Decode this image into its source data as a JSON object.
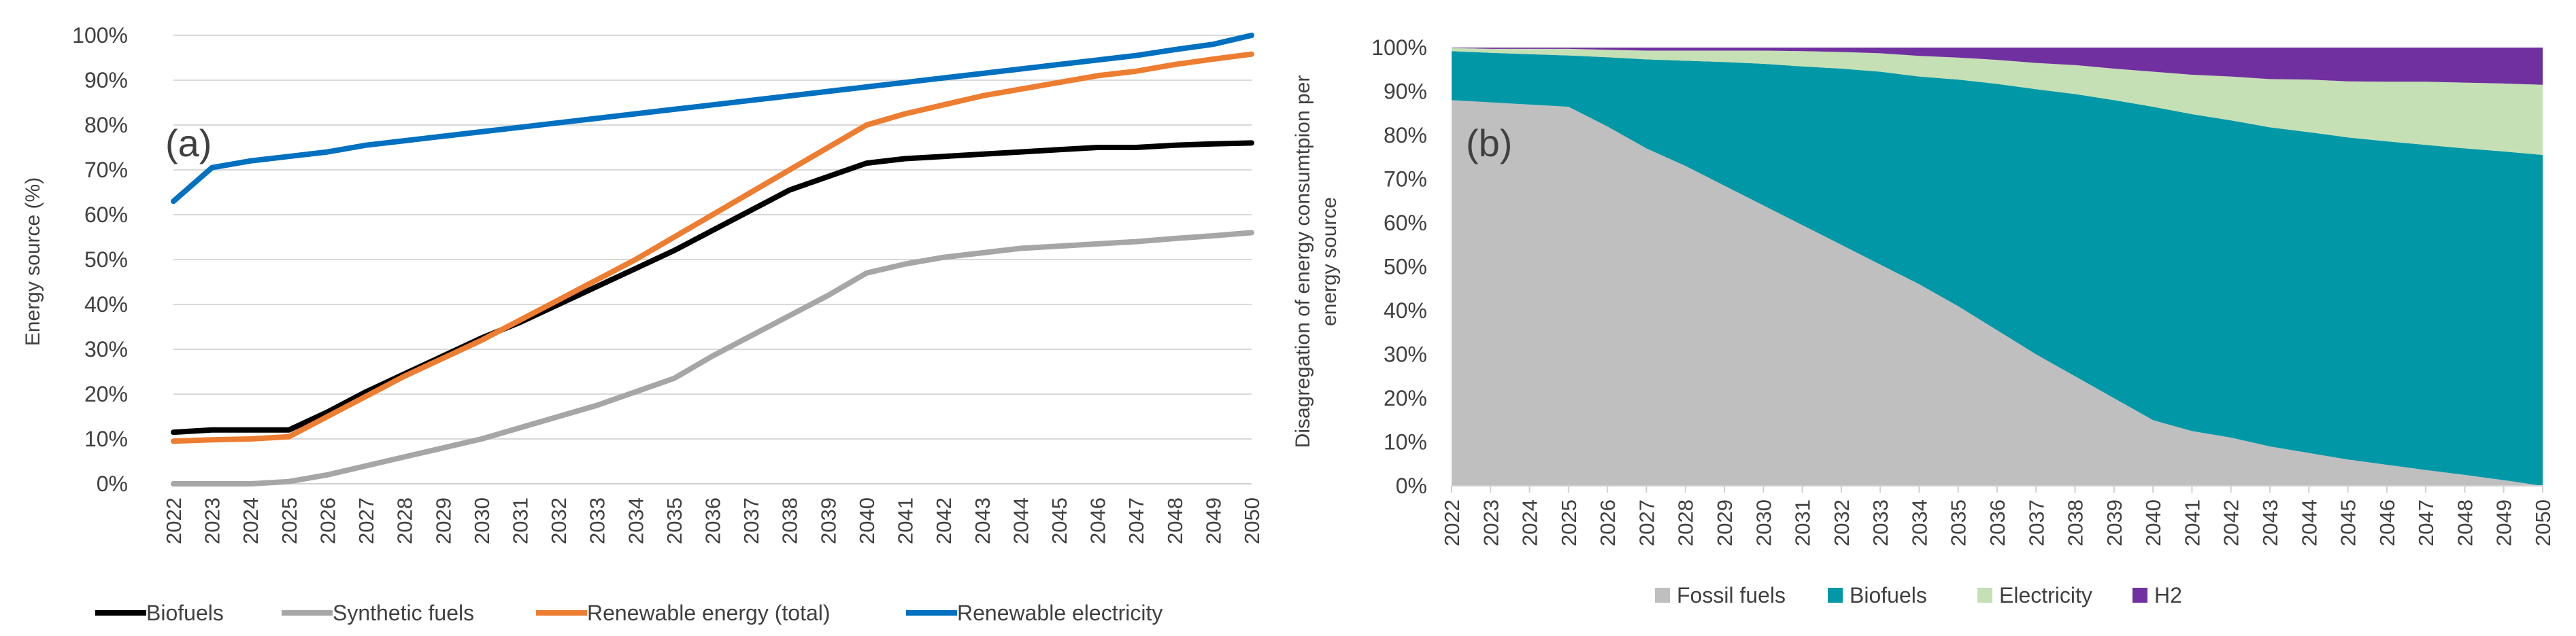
{
  "chart_data": [
    {
      "id": "a",
      "type": "line",
      "panel_label": "(a)",
      "title": "",
      "ylabel": "Energy source (%)",
      "xlabel": "",
      "ylim": [
        0,
        100
      ],
      "yticks": [
        "0%",
        "10%",
        "20%",
        "30%",
        "40%",
        "50%",
        "60%",
        "70%",
        "80%",
        "90%",
        "100%"
      ],
      "grid": true,
      "legend_position": "bottom",
      "categories": [
        "2022",
        "2023",
        "2024",
        "2025",
        "2026",
        "2027",
        "2028",
        "2029",
        "2030",
        "2031",
        "2032",
        "2033",
        "2034",
        "2035",
        "2036",
        "2037",
        "2038",
        "2039",
        "2040",
        "2041",
        "2042",
        "2043",
        "2044",
        "2045",
        "2046",
        "2047",
        "2048",
        "2049",
        "2050"
      ],
      "series": [
        {
          "name": "Biofuels",
          "color": "#000000",
          "values": [
            11.5,
            12,
            12,
            12,
            16,
            20.5,
            24.5,
            28.5,
            32.5,
            36,
            40,
            44,
            48,
            52,
            56.5,
            61,
            65.5,
            68.5,
            71.5,
            72.5,
            73,
            73.5,
            74,
            74.5,
            75,
            75,
            75.5,
            75.8,
            76
          ]
        },
        {
          "name": "Synthetic fuels",
          "color": "#a6a6a6",
          "values": [
            0,
            0,
            0,
            0.5,
            2,
            4,
            6,
            8,
            10,
            12.5,
            15,
            17.5,
            20.5,
            23.5,
            28.5,
            33,
            37.5,
            42,
            47,
            49,
            50.5,
            51.5,
            52.5,
            53,
            53.5,
            54,
            54.7,
            55.3,
            56
          ]
        },
        {
          "name": "Renewable energy (total)",
          "color": "#ed7d31",
          "values": [
            9.5,
            9.8,
            10,
            10.5,
            15,
            19.5,
            24,
            28,
            32,
            36.5,
            41,
            45.5,
            50,
            55,
            60,
            65,
            70,
            75,
            80,
            82.5,
            84.5,
            86.5,
            88,
            89.5,
            91,
            92,
            93.5,
            94.7,
            95.8
          ]
        },
        {
          "name": "Renewable electricity",
          "color": "#0070c0",
          "values": [
            63,
            70.5,
            72,
            73,
            74,
            75.5,
            76.5,
            77.5,
            78.5,
            79.5,
            80.5,
            81.5,
            82.5,
            83.5,
            84.5,
            85.5,
            86.5,
            87.5,
            88.5,
            89.5,
            90.5,
            91.5,
            92.5,
            93.5,
            94.5,
            95.5,
            96.8,
            98,
            100
          ]
        }
      ]
    },
    {
      "id": "b",
      "type": "area",
      "stacked": true,
      "panel_label": "(b)",
      "title": "",
      "ylabel": "Disagregation of energy consumtpion per energy source",
      "xlabel": "",
      "ylim": [
        0,
        100
      ],
      "yticks": [
        "0%",
        "10%",
        "20%",
        "30%",
        "40%",
        "50%",
        "60%",
        "70%",
        "80%",
        "90%",
        "100%"
      ],
      "grid": false,
      "legend_position": "bottom",
      "categories": [
        "2022",
        "2023",
        "2024",
        "2025",
        "2026",
        "2027",
        "2028",
        "2029",
        "2030",
        "2031",
        "2032",
        "2033",
        "2034",
        "2035",
        "2036",
        "2037",
        "2038",
        "2039",
        "2040",
        "2041",
        "2042",
        "2043",
        "2044",
        "2045",
        "2046",
        "2047",
        "2048",
        "2049",
        "2050"
      ],
      "series": [
        {
          "name": "Fossil fuels",
          "color": "#bfbfbf",
          "values": [
            88,
            87.5,
            87,
            86.5,
            82,
            77,
            73,
            68.5,
            64,
            59.5,
            55,
            50.5,
            46,
            41,
            35.5,
            30,
            25,
            20,
            15,
            12.5,
            11,
            9,
            7.5,
            6,
            4.8,
            3.6,
            2.5,
            1.3,
            0
          ]
        },
        {
          "name": "Biofuels",
          "color": "#0097a7",
          "values": [
            11.2,
            11.3,
            11.5,
            11.7,
            15.8,
            20.3,
            24,
            28.2,
            32.3,
            36.2,
            40.2,
            44,
            47.4,
            51.7,
            56.2,
            60.5,
            64.4,
            68,
            71.5,
            72.3,
            72.4,
            72.8,
            73.2,
            73.5,
            73.8,
            74.2,
            74.5,
            75,
            75.5
          ]
        },
        {
          "name": "Electricity",
          "color": "#c5e0b4",
          "values": [
            0.7,
            0.9,
            1.2,
            1.5,
            1.7,
            2,
            2.3,
            2.6,
            3,
            3.5,
            3.8,
            4.2,
            4.7,
            5,
            5.5,
            6,
            6.6,
            7.2,
            8,
            9,
            10,
            11,
            12,
            12.8,
            13.6,
            14.4,
            15,
            15.5,
            16
          ]
        },
        {
          "name": "H2",
          "color": "#7030a0",
          "values": [
            0.1,
            0.3,
            0.3,
            0.3,
            0.5,
            0.7,
            0.7,
            0.7,
            0.7,
            0.8,
            1,
            1.3,
            1.9,
            2.3,
            2.8,
            3.5,
            4,
            4.8,
            5.5,
            6.2,
            6.6,
            7.2,
            7.3,
            7.7,
            7.8,
            7.8,
            8,
            8.2,
            8.5
          ]
        }
      ]
    }
  ]
}
